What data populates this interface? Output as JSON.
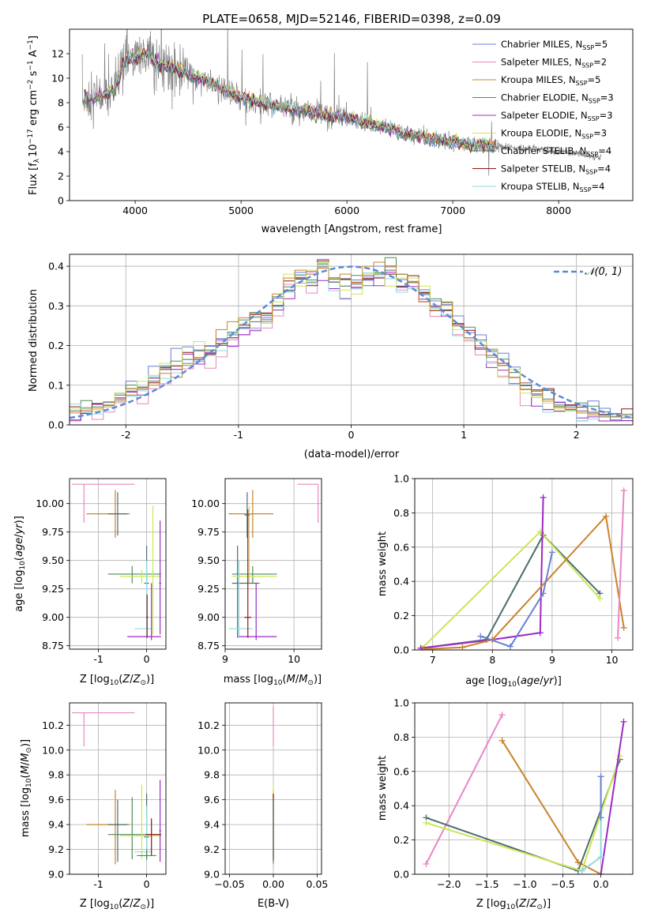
{
  "colors": {
    "Chabrier MILES": "#6a7fd6",
    "Salpeter MILES": "#e887c3",
    "Kroupa MILES": "#c8842a",
    "Chabrier ELODIE": "#4f8a59",
    "Salpeter ELODIE": "#9c2bc4",
    "Kroupa ELODIE": "#cde557",
    "Chabrier STELIB": "#4d6d6d",
    "Salpeter STELIB": "#8f1515",
    "Kroupa STELIB": "#8ed9df",
    "data": "#808080",
    "normal": "#5b8ad6",
    "grid": "#b0b0b0"
  },
  "chart_data": [
    {
      "type": "line",
      "id": "spectrum",
      "title": "PLATE=0658, MJD=52146, FIBERID=0398, z=0.09",
      "xlabel": "wavelength [Angstrom, rest frame]",
      "ylabel": "Flux [f_λ 10^-17 erg cm^-2 s^-1 A^-1]",
      "ylabel_parts": [
        "Flux [f",
        "λ",
        "10",
        "−17",
        " erg cm",
        "−2",
        " s",
        "−1",
        " A",
        "−1",
        "]"
      ],
      "xlim": [
        3380,
        8700
      ],
      "ylim": [
        0,
        14
      ],
      "xticks": [
        4000,
        5000,
        6000,
        7000,
        8000
      ],
      "yticks": [
        0,
        2,
        4,
        6,
        8,
        10,
        12
      ],
      "grid": false,
      "legend_position": "top-right",
      "legend": [
        {
          "name": "Chabrier MILES",
          "n": "5"
        },
        {
          "name": "Salpeter MILES",
          "n": "2"
        },
        {
          "name": "Kroupa MILES",
          "n": "5"
        },
        {
          "name": "Chabrier ELODIE",
          "n": "3"
        },
        {
          "name": "Salpeter ELODIE",
          "n": "3"
        },
        {
          "name": "Kroupa ELODIE",
          "n": "3"
        },
        {
          "name": "Chabrier STELIB",
          "n": "4"
        },
        {
          "name": "Salpeter STELIB",
          "n": "4"
        },
        {
          "name": "Kroupa STELIB",
          "n": "4"
        }
      ],
      "data_continuum": {
        "x": [
          3500,
          3600,
          3700,
          3800,
          3900,
          4000,
          4100,
          4200,
          4300,
          4400,
          4500,
          4600,
          4700,
          4800,
          4900,
          5000,
          5200,
          5400,
          5600,
          5800,
          6000,
          6200,
          6400,
          6600,
          6800,
          7000,
          7200,
          7400,
          7600,
          7800,
          8000,
          8200,
          8400
        ],
        "y": [
          8.2,
          8.4,
          8.6,
          9.0,
          11.5,
          11.8,
          12.0,
          11.2,
          11.0,
          10.6,
          10.3,
          10.0,
          9.7,
          9.3,
          8.8,
          8.4,
          8.0,
          7.6,
          7.3,
          7.0,
          6.8,
          6.3,
          5.9,
          5.4,
          5.0,
          4.8,
          4.6,
          4.4,
          4.3,
          4.2,
          4.0,
          3.8,
          3.5
        ]
      },
      "models_end_x": 7400,
      "lines_end_x": 8400
    },
    {
      "type": "bar",
      "id": "residuals",
      "xlabel": "(data-model)/error",
      "ylabel": "Normed distribution",
      "xlim": [
        -2.5,
        2.5
      ],
      "ylim": [
        0,
        0.43
      ],
      "xticks": [
        -2,
        -1,
        0,
        1,
        2
      ],
      "yticks": [
        0.0,
        0.1,
        0.2,
        0.3,
        0.4
      ],
      "grid": true,
      "legend_position": "top-right",
      "legend": [
        "𝒩(0, 1)"
      ],
      "bin_edges_start": -2.5,
      "bin_width": 0.1,
      "series": [
        {
          "name": "Chabrier STELIB",
          "values": [
            0.035,
            0.04,
            0.045,
            0.05,
            0.075,
            0.085,
            0.095,
            0.11,
            0.14,
            0.15,
            0.165,
            0.17,
            0.18,
            0.2,
            0.22,
            0.245,
            0.26,
            0.265,
            0.3,
            0.34,
            0.37,
            0.36,
            0.4,
            0.36,
            0.35,
            0.355,
            0.37,
            0.38,
            0.39,
            0.35,
            0.36,
            0.33,
            0.3,
            0.29,
            0.25,
            0.22,
            0.2,
            0.175,
            0.15,
            0.12,
            0.1,
            0.075,
            0.065,
            0.05,
            0.045,
            0.035,
            0.03,
            0.025,
            0.02,
            0.02
          ]
        },
        {
          "name": "Kroupa ELODIE",
          "values": [
            0.04,
            0.04,
            0.035,
            0.045,
            0.08,
            0.09,
            0.11,
            0.125,
            0.155,
            0.15,
            0.2,
            0.21,
            0.19,
            0.21,
            0.23,
            0.255,
            0.27,
            0.26,
            0.31,
            0.38,
            0.35,
            0.39,
            0.41,
            0.37,
            0.34,
            0.33,
            0.38,
            0.385,
            0.35,
            0.37,
            0.37,
            0.35,
            0.29,
            0.3,
            0.24,
            0.215,
            0.21,
            0.19,
            0.12,
            0.14,
            0.08,
            0.07,
            0.055,
            0.04,
            0.035,
            0.03,
            0.025,
            0.02,
            0.02,
            0.02
          ]
        },
        {
          "name": "Kroupa MILES",
          "values": [
            0.03,
            0.035,
            0.04,
            0.05,
            0.06,
            0.075,
            0.09,
            0.1,
            0.13,
            0.12,
            0.15,
            0.17,
            0.2,
            0.24,
            0.26,
            0.27,
            0.28,
            0.26,
            0.33,
            0.37,
            0.39,
            0.38,
            0.395,
            0.37,
            0.38,
            0.36,
            0.4,
            0.41,
            0.4,
            0.38,
            0.36,
            0.31,
            0.3,
            0.31,
            0.25,
            0.22,
            0.2,
            0.17,
            0.15,
            0.12,
            0.09,
            0.085,
            0.06,
            0.045,
            0.04,
            0.03,
            0.025,
            0.02,
            0.02,
            0.025
          ]
        }
      ]
    },
    {
      "type": "scatter",
      "id": "age-vs-z",
      "xlabel": "Z [log10(Z/Z⊙)]",
      "ylabel": "age [log10(age/yr)]",
      "xlim": [
        -1.6,
        0.4
      ],
      "ylim": [
        8.72,
        10.22
      ],
      "xticks": [
        -1,
        0
      ],
      "yticks": [
        8.75,
        9.0,
        9.25,
        9.5,
        9.75,
        10.0
      ],
      "grid": true
    },
    {
      "type": "scatter",
      "id": "age-vs-mass",
      "xlabel": "mass [log10(M/M⊙)]",
      "xlim": [
        9.0,
        10.4
      ],
      "ylim": [
        8.72,
        10.22
      ],
      "xticks": [
        9,
        10
      ],
      "yticks": [
        8.75,
        9.0,
        9.25,
        9.5,
        9.75,
        10.0
      ],
      "grid": true
    },
    {
      "type": "line",
      "id": "weight-vs-age",
      "xlabel": "age [log10(age/yr)]",
      "ylabel": "mass weight",
      "xlim": [
        6.7,
        10.35
      ],
      "ylim": [
        0.0,
        1.0
      ],
      "xticks": [
        7,
        8,
        9,
        10
      ],
      "yticks": [
        0.0,
        0.2,
        0.4,
        0.6,
        0.8,
        1.0
      ],
      "grid": true,
      "series": [
        {
          "name": "Chabrier STELIB",
          "x": [
            6.8,
            7.9,
            8.85,
            9.8
          ],
          "y": [
            0.01,
            0.06,
            0.67,
            0.33
          ]
        },
        {
          "name": "Kroupa ELODIE",
          "x": [
            6.82,
            8.8,
            9.8
          ],
          "y": [
            0.01,
            0.69,
            0.3
          ]
        },
        {
          "name": "Salpeter ELODIE",
          "x": [
            6.8,
            8.0,
            8.8,
            8.85
          ],
          "y": [
            0.01,
            0.06,
            0.1,
            0.89
          ]
        },
        {
          "name": "Kroupa MILES",
          "x": [
            6.85,
            7.5,
            8.0,
            9.9,
            10.2
          ],
          "y": [
            0.005,
            0.015,
            0.06,
            0.78,
            0.13
          ]
        },
        {
          "name": "Chabrier MILES",
          "x": [
            7.8,
            8.3,
            8.85,
            9.0
          ],
          "y": [
            0.08,
            0.02,
            0.33,
            0.57
          ]
        },
        {
          "name": "Salpeter MILES",
          "x": [
            10.1,
            10.2
          ],
          "y": [
            0.07,
            0.93
          ]
        }
      ]
    },
    {
      "type": "scatter",
      "id": "mass-vs-z",
      "xlabel": "Z [log10(Z/Z⊙)]",
      "ylabel": "mass [log10(M/M⊙)]",
      "xlim": [
        -1.6,
        0.4
      ],
      "ylim": [
        9.0,
        10.38
      ],
      "xticks": [
        -1,
        0
      ],
      "yticks": [
        9.0,
        9.2,
        9.4,
        9.6,
        9.8,
        10.0,
        10.2
      ],
      "grid": true
    },
    {
      "type": "scatter",
      "id": "mass-vs-ebv",
      "xlabel": "E(B-V)",
      "xlim": [
        -0.055,
        0.055
      ],
      "ylim": [
        9.0,
        10.38
      ],
      "xticks": [
        -0.05,
        0.0,
        0.05
      ],
      "xtick_labels": [
        "−0.05",
        "0.00",
        "0.05"
      ],
      "yticks": [
        9.0,
        9.2,
        9.4,
        9.6,
        9.8,
        10.0,
        10.2
      ],
      "grid": true
    },
    {
      "type": "line",
      "id": "weight-vs-z",
      "xlabel": "Z [log10(Z/Z⊙)]",
      "ylabel": "mass weight",
      "xlim": [
        -2.45,
        0.42
      ],
      "ylim": [
        0.0,
        1.0
      ],
      "xticks": [
        -2.0,
        -1.5,
        -1.0,
        -0.5,
        0.0
      ],
      "xtick_labels": [
        "−2.0",
        "−1.5",
        "−1.0",
        "−0.5",
        "0.0"
      ],
      "yticks": [
        0.0,
        0.2,
        0.4,
        0.6,
        0.8,
        1.0
      ],
      "grid": true,
      "series": [
        {
          "name": "Salpeter MILES",
          "x": [
            -2.3,
            -1.3
          ],
          "y": [
            0.06,
            0.93
          ]
        },
        {
          "name": "Kroupa MILES",
          "x": [
            -1.3,
            -0.3,
            0.0
          ],
          "y": [
            0.78,
            0.07,
            0.0
          ]
        },
        {
          "name": "Chabrier STELIB",
          "x": [
            -2.3,
            -0.3,
            0.25
          ],
          "y": [
            0.33,
            0.02,
            0.67
          ]
        },
        {
          "name": "Kroupa ELODIE",
          "x": [
            -2.3,
            -0.25,
            0.25
          ],
          "y": [
            0.3,
            0.02,
            0.69
          ]
        },
        {
          "name": "Salpeter ELODIE",
          "x": [
            0.0,
            0.3
          ],
          "y": [
            0.0,
            0.89
          ]
        },
        {
          "name": "Kroupa STELIB",
          "x": [
            -0.25,
            0.0,
            0.0
          ],
          "y": [
            0.02,
            0.1,
            0.57
          ]
        },
        {
          "name": "Chabrier MILES",
          "x": [
            0.0,
            0.0
          ],
          "y": [
            0.33,
            0.57
          ]
        }
      ]
    }
  ],
  "errorbars": {
    "age_vs_z": [
      {
        "c": "Salpeter MILES",
        "x": -1.3,
        "xe": [
          -1.55,
          -0.25
        ],
        "y": 10.17,
        "ye": [
          9.83,
          10.17
        ]
      },
      {
        "c": "Kroupa MILES",
        "x": -0.65,
        "xe": [
          -1.25,
          -0.35
        ],
        "y": 9.91,
        "ye": [
          9.7,
          10.12
        ]
      },
      {
        "c": "Chabrier STELIB",
        "x": -0.6,
        "xe": [
          -0.8,
          -0.4
        ],
        "y": 9.91,
        "ye": [
          9.72,
          10.1
        ]
      },
      {
        "c": "Chabrier ELODIE",
        "x": -0.3,
        "xe": [
          -0.8,
          0.3
        ],
        "y": 9.38,
        "ye": [
          9.3,
          9.45
        ]
      },
      {
        "c": "Kroupa ELODIE",
        "x": -0.1,
        "xe": [
          -0.55,
          0.3
        ],
        "y": 9.36,
        "ye": [
          9.3,
          9.42
        ]
      },
      {
        "c": "Chabrier STELIB",
        "x": 0.0,
        "xe": [
          -0.05,
          0.05
        ],
        "y": 9.3,
        "ye": [
          8.82,
          9.63
        ]
      },
      {
        "c": "Kroupa STELIB",
        "x": 0.0,
        "xe": [
          -0.25,
          0.1
        ],
        "y": 8.9,
        "ye": [
          8.82,
          9.5
        ]
      },
      {
        "c": "Salpeter ELODIE",
        "x": 0.1,
        "xe": [
          -0.4,
          0.3
        ],
        "y": 8.83,
        "ye": [
          8.8,
          9.3
        ]
      },
      {
        "c": "Salpeter ELODIE",
        "x": 0.28,
        "xe": [
          0.26,
          0.3
        ],
        "y": 9.3,
        "ye": [
          8.85,
          9.85
        ]
      },
      {
        "c": "Kroupa ELODIE",
        "x": 0.13,
        "xe": [
          0.11,
          0.15
        ],
        "y": 9.4,
        "ye": [
          8.85,
          9.98
        ]
      },
      {
        "c": "Salpeter STELIB",
        "x": 0.01,
        "xe": [
          -0.01,
          0.03
        ],
        "y": 9.0,
        "ye": [
          8.82,
          9.2
        ]
      }
    ],
    "age_vs_mass": [
      {
        "c": "Salpeter MILES",
        "x": 10.35,
        "xe": [
          10.05,
          10.35
        ],
        "y": 10.17,
        "ye": [
          9.83,
          10.17
        ]
      },
      {
        "c": "Kroupa MILES",
        "x": 9.4,
        "xe": [
          9.05,
          9.7
        ],
        "y": 9.91,
        "ye": [
          9.7,
          10.12
        ]
      },
      {
        "c": "Chabrier STELIB",
        "x": 9.18,
        "xe": [
          9.1,
          9.5
        ],
        "y": 9.3,
        "ye": [
          8.82,
          9.63
        ]
      },
      {
        "c": "Chabrier ELODIE",
        "x": 9.4,
        "xe": [
          9.1,
          9.75
        ],
        "y": 9.38,
        "ye": [
          9.3,
          9.45
        ]
      },
      {
        "c": "Kroupa ELODIE",
        "x": 9.35,
        "xe": [
          9.1,
          9.75
        ],
        "y": 9.36,
        "ye": [
          9.3,
          9.98
        ]
      },
      {
        "c": "Kroupa STELIB",
        "x": 9.2,
        "xe": [
          9.05,
          9.4
        ],
        "y": 8.9,
        "ye": [
          8.82,
          9.5
        ]
      },
      {
        "c": "Salpeter ELODIE",
        "x": 9.45,
        "xe": [
          9.2,
          9.75
        ],
        "y": 8.83,
        "ye": [
          8.8,
          9.3
        ]
      },
      {
        "c": "Salpeter STELIB",
        "x": 9.33,
        "xe": [
          9.28,
          9.38
        ],
        "y": 9.0,
        "ye": [
          8.82,
          9.95
        ]
      },
      {
        "c": "Chabrier STELIB",
        "x": 9.32,
        "xe": [
          9.28,
          9.36
        ],
        "y": 9.9,
        "ye": [
          9.7,
          10.1
        ]
      }
    ],
    "mass_vs_z": [
      {
        "c": "Salpeter MILES",
        "x": -1.3,
        "xe": [
          -1.55,
          -0.25
        ],
        "y": 10.3,
        "ye": [
          10.03,
          10.3
        ]
      },
      {
        "c": "Kroupa MILES",
        "x": -0.65,
        "xe": [
          -1.25,
          -0.35
        ],
        "y": 9.4,
        "ye": [
          9.08,
          9.68
        ]
      },
      {
        "c": "Chabrier STELIB",
        "x": -0.6,
        "xe": [
          -0.8,
          -0.4
        ],
        "y": 9.4,
        "ye": [
          9.1,
          9.6
        ]
      },
      {
        "c": "Chabrier ELODIE",
        "x": -0.3,
        "xe": [
          -0.8,
          0.3
        ],
        "y": 9.32,
        "ye": [
          9.12,
          9.62
        ]
      },
      {
        "c": "Kroupa ELODIE",
        "x": -0.1,
        "xe": [
          -0.55,
          0.3
        ],
        "y": 9.31,
        "ye": [
          9.12,
          9.72
        ]
      },
      {
        "c": "Chabrier STELIB",
        "x": 0.0,
        "xe": [
          -0.05,
          0.05
        ],
        "y": 9.3,
        "ye": [
          9.12,
          9.65
        ]
      },
      {
        "c": "Kroupa STELIB",
        "x": 0.0,
        "xe": [
          -0.25,
          0.1
        ],
        "y": 9.18,
        "ye": [
          9.1,
          9.55
        ]
      },
      {
        "c": "Salpeter ELODIE",
        "x": 0.28,
        "xe": [
          0.26,
          0.3
        ],
        "y": 9.35,
        "ye": [
          9.1,
          9.76
        ]
      },
      {
        "c": "Salpeter STELIB",
        "x": 0.1,
        "xe": [
          -0.02,
          0.3
        ],
        "y": 9.32,
        "ye": [
          9.15,
          9.45
        ]
      },
      {
        "c": "Chabrier ELODIE",
        "x": 0.0,
        "xe": [
          -0.2,
          0.2
        ],
        "y": 9.15,
        "ye": [
          9.12,
          9.2
        ]
      }
    ],
    "mass_vs_ebv": [
      {
        "c": "Salpeter MILES",
        "x": 0.0,
        "xe": [
          0.0,
          0.0
        ],
        "y": 10.3,
        "ye": [
          10.03,
          10.35
        ]
      },
      {
        "c": "Kroupa MILES",
        "x": 0.0,
        "xe": [
          0.0,
          0.0
        ],
        "y": 9.4,
        "ye": [
          9.08,
          9.68
        ]
      },
      {
        "c": "Kroupa ELODIE",
        "x": 0.0,
        "xe": [
          0.0,
          0.0
        ],
        "y": 9.4,
        "ye": [
          9.15,
          9.72
        ]
      },
      {
        "c": "Salpeter STELIB",
        "x": 0.0,
        "xe": [
          0.0,
          0.0
        ],
        "y": 9.35,
        "ye": [
          9.12,
          9.65
        ]
      },
      {
        "c": "Chabrier STELIB",
        "x": 0.0,
        "xe": [
          0.0,
          0.0
        ],
        "y": 9.3,
        "ye": [
          9.1,
          9.6
        ]
      }
    ]
  }
}
